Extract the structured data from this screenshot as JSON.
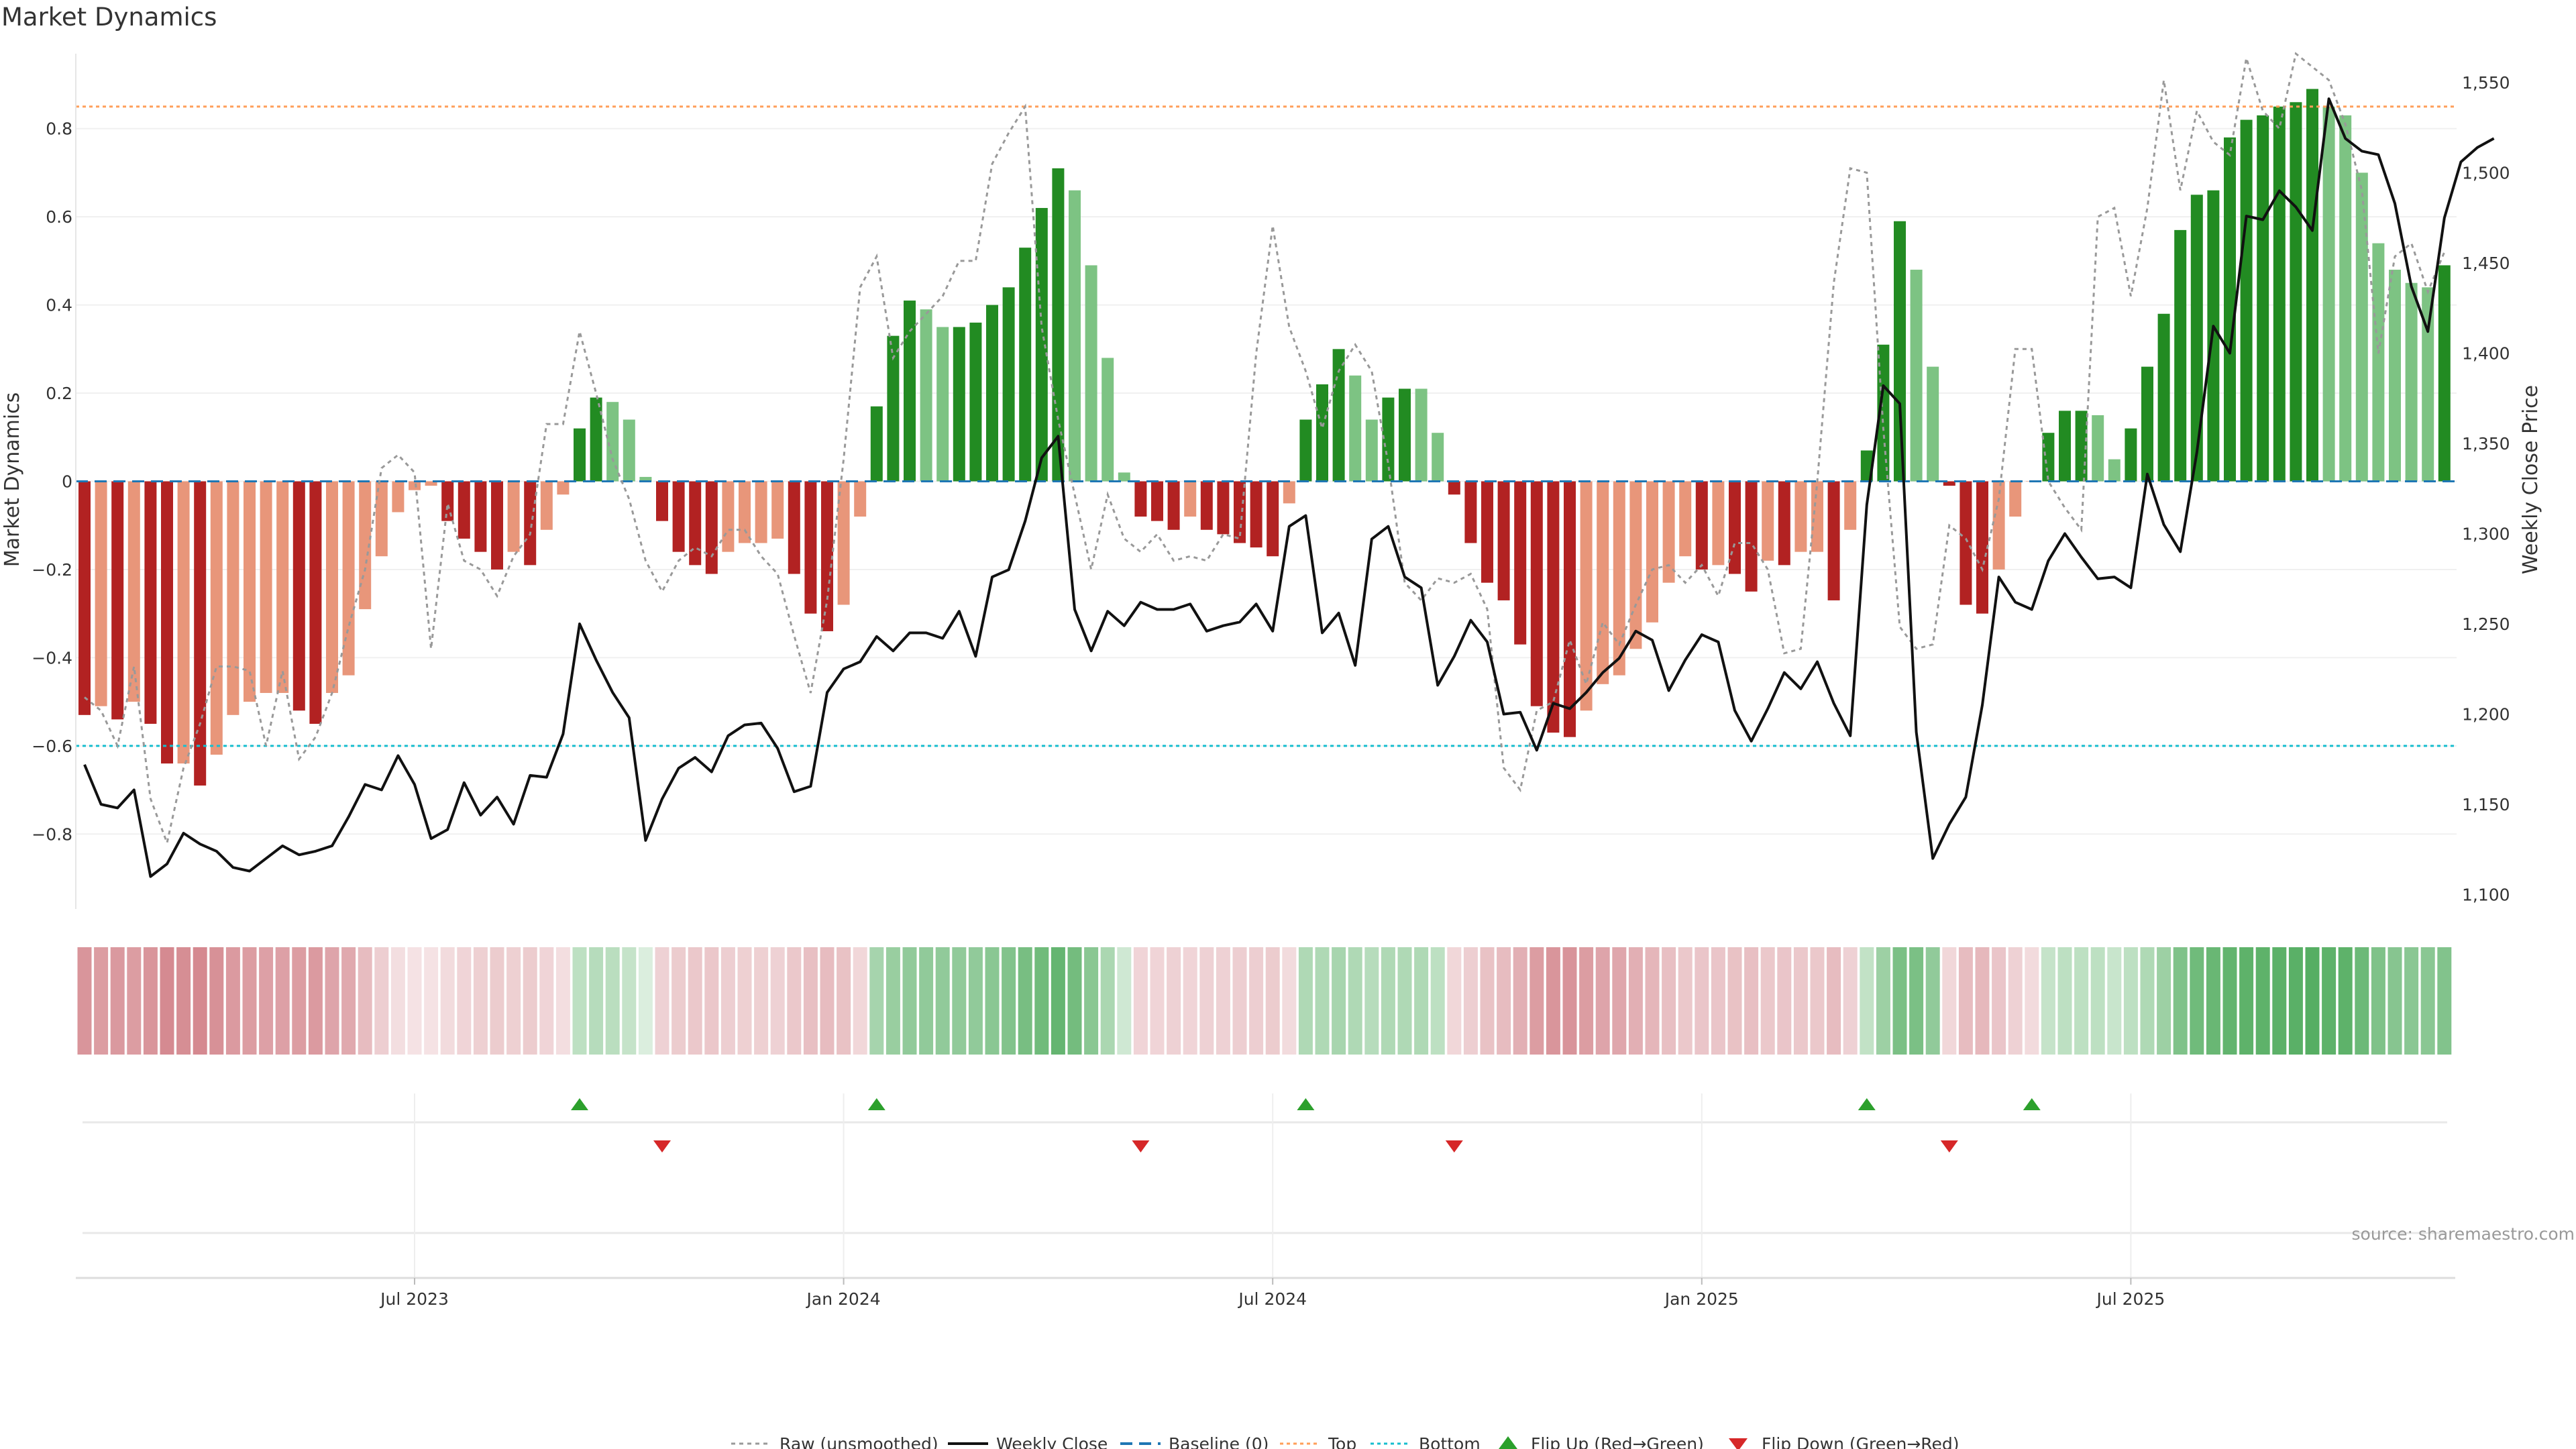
{
  "chart_data": {
    "type": "bar",
    "title": "Market Dynamics",
    "ylabel": "Market Dynamics",
    "ylabel_right": "Weekly Close Price",
    "ylim": [
      -0.97,
      0.97
    ],
    "ylim_right": [
      1092,
      1566
    ],
    "yticks_left": [
      -0.8,
      -0.6,
      -0.4,
      -0.2,
      0,
      0.2,
      0.4,
      0.6,
      0.8
    ],
    "yticks_left_labels": [
      "−0.8",
      "−0.6",
      "−0.4",
      "−0.2",
      "0",
      "0.2",
      "0.4",
      "0.6",
      "0.8"
    ],
    "yticks_right": [
      1100,
      1150,
      1200,
      1250,
      1300,
      1350,
      1400,
      1450,
      1500,
      1550
    ],
    "yticks_right_labels": [
      "1,100",
      "1,150",
      "1,200",
      "1,250",
      "1,300",
      "1,350",
      "1,400",
      "1,450",
      "1,500",
      "1,550"
    ],
    "x_tick_indices": [
      20,
      46,
      72,
      98,
      124
    ],
    "x_tick_labels": [
      "Jul 2023",
      "Jan 2024",
      "Jul 2024",
      "Jan 2025",
      "Jul 2025"
    ],
    "top_threshold": 0.85,
    "bottom_threshold": -0.6,
    "colors": {
      "strong_green": "#228b22",
      "weak_green": "#7dc383",
      "strong_red": "#b22222",
      "weak_red": "#e8967a",
      "raw_line": "#999999",
      "close_line": "#111111",
      "baseline": "#1f77b4",
      "top": "#ff9f5a",
      "bottom": "#17becf",
      "flip_up": "#2ca02c",
      "flip_down": "#d62728",
      "heat_green": "#2e9b3e",
      "heat_red": "#c0505a"
    },
    "series": [
      {
        "name": "Market Dynamics (smoothed)",
        "values": [
          -0.53,
          -0.51,
          -0.54,
          -0.5,
          -0.55,
          -0.64,
          -0.64,
          -0.69,
          -0.62,
          -0.53,
          -0.5,
          -0.48,
          -0.48,
          -0.52,
          -0.55,
          -0.48,
          -0.44,
          -0.29,
          -0.17,
          -0.07,
          -0.02,
          -0.01,
          -0.09,
          -0.13,
          -0.16,
          -0.2,
          -0.16,
          -0.19,
          -0.11,
          -0.03,
          0.12,
          0.19,
          0.18,
          0.14,
          0.01,
          -0.09,
          -0.16,
          -0.19,
          -0.21,
          -0.16,
          -0.14,
          -0.14,
          -0.13,
          -0.21,
          -0.3,
          -0.34,
          -0.28,
          -0.08,
          0.17,
          0.33,
          0.41,
          0.39,
          0.35,
          0.35,
          0.36,
          0.4,
          0.44,
          0.53,
          0.62,
          0.71,
          0.66,
          0.49,
          0.28,
          0.02,
          -0.08,
          -0.09,
          -0.11,
          -0.08,
          -0.11,
          -0.12,
          -0.14,
          -0.15,
          -0.17,
          -0.05,
          0.14,
          0.22,
          0.3,
          0.24,
          0.14,
          0.19,
          0.21,
          0.21,
          0.11,
          -0.03,
          -0.14,
          -0.23,
          -0.27,
          -0.37,
          -0.51,
          -0.57,
          -0.58,
          -0.52,
          -0.46,
          -0.44,
          -0.38,
          -0.32,
          -0.23,
          -0.17,
          -0.2,
          -0.19,
          -0.21,
          -0.25,
          -0.18,
          -0.19,
          -0.16,
          -0.16,
          -0.27,
          -0.11,
          0.07,
          0.31,
          0.59,
          0.48,
          0.26,
          -0.01,
          -0.28,
          -0.3,
          -0.2,
          -0.08,
          0.0,
          0.11,
          0.16,
          0.16,
          0.15,
          0.05,
          0.12,
          0.26,
          0.38,
          0.57,
          0.65,
          0.66,
          0.78,
          0.82,
          0.83,
          0.85,
          0.86,
          0.89,
          0.85,
          0.83,
          0.7,
          0.54,
          0.48,
          0.45,
          0.44,
          0.49
        ],
        "colors": [
          "sr",
          "wr",
          "sr",
          "wr",
          "sr",
          "sr",
          "wr",
          "sr",
          "wr",
          "wr",
          "wr",
          "wr",
          "wr",
          "sr",
          "sr",
          "wr",
          "wr",
          "wr",
          "wr",
          "wr",
          "wr",
          "wr",
          "sr",
          "sr",
          "sr",
          "sr",
          "wr",
          "sr",
          "wr",
          "wr",
          "sg",
          "sg",
          "wg",
          "wg",
          "wg",
          "sr",
          "sr",
          "sr",
          "sr",
          "wr",
          "wr",
          "wr",
          "wr",
          "sr",
          "sr",
          "sr",
          "wr",
          "wr",
          "sg",
          "sg",
          "sg",
          "wg",
          "wg",
          "sg",
          "sg",
          "sg",
          "sg",
          "sg",
          "sg",
          "sg",
          "wg",
          "wg",
          "wg",
          "wg",
          "sr",
          "sr",
          "sr",
          "wr",
          "sr",
          "sr",
          "sr",
          "sr",
          "sr",
          "wr",
          "sg",
          "sg",
          "sg",
          "wg",
          "wg",
          "sg",
          "sg",
          "wg",
          "wg",
          "sr",
          "sr",
          "sr",
          "sr",
          "sr",
          "sr",
          "sr",
          "sr",
          "wr",
          "wr",
          "wr",
          "wr",
          "wr",
          "wr",
          "wr",
          "sr",
          "wr",
          "sr",
          "sr",
          "wr",
          "sr",
          "wr",
          "wr",
          "sr",
          "wr",
          "sg",
          "sg",
          "sg",
          "wg",
          "wg",
          "sr",
          "sr",
          "sr",
          "wr",
          "wr",
          "wr",
          "sg",
          "sg",
          "sg",
          "wg",
          "wg",
          "sg",
          "sg",
          "sg",
          "sg",
          "sg",
          "sg",
          "sg",
          "sg",
          "sg",
          "sg",
          "sg",
          "sg",
          "wg",
          "wg",
          "wg",
          "wg",
          "wg",
          "wg",
          "wg",
          "sg"
        ]
      },
      {
        "name": "Raw (unsmoothed)",
        "values": [
          -0.49,
          -0.52,
          -0.6,
          -0.42,
          -0.72,
          -0.82,
          -0.65,
          -0.55,
          -0.42,
          -0.42,
          -0.43,
          -0.6,
          -0.43,
          -0.63,
          -0.58,
          -0.48,
          -0.33,
          -0.2,
          0.03,
          0.06,
          0.02,
          -0.38,
          -0.05,
          -0.18,
          -0.2,
          -0.26,
          -0.17,
          -0.12,
          0.13,
          0.13,
          0.34,
          0.2,
          0.05,
          -0.04,
          -0.18,
          -0.25,
          -0.18,
          -0.15,
          -0.17,
          -0.11,
          -0.11,
          -0.17,
          -0.21,
          -0.35,
          -0.48,
          -0.27,
          0.05,
          0.44,
          0.51,
          0.28,
          0.34,
          0.38,
          0.42,
          0.5,
          0.5,
          0.72,
          0.79,
          0.85,
          0.35,
          0.14,
          -0.03,
          -0.2,
          -0.03,
          -0.13,
          -0.16,
          -0.12,
          -0.18,
          -0.17,
          -0.18,
          -0.12,
          -0.13,
          0.29,
          0.58,
          0.35,
          0.25,
          0.12,
          0.25,
          0.31,
          0.25,
          0.04,
          -0.23,
          -0.27,
          -0.22,
          -0.23,
          -0.21,
          -0.29,
          -0.65,
          -0.7,
          -0.52,
          -0.5,
          -0.36,
          -0.46,
          -0.32,
          -0.37,
          -0.28,
          -0.2,
          -0.19,
          -0.23,
          -0.19,
          -0.26,
          -0.14,
          -0.14,
          -0.2,
          -0.39,
          -0.38,
          0.0,
          0.45,
          0.71,
          0.7,
          0.12,
          -0.33,
          -0.38,
          -0.37,
          -0.1,
          -0.13,
          -0.2,
          -0.04,
          0.3,
          0.3,
          0.0,
          -0.06,
          -0.11,
          0.6,
          0.62,
          0.42,
          0.62,
          0.91,
          0.66,
          0.84,
          0.77,
          0.74,
          0.96,
          0.84,
          0.8,
          0.97,
          0.94,
          0.91,
          0.81,
          0.66,
          0.29,
          0.51,
          0.54,
          0.43,
          0.52
        ]
      },
      {
        "name": "Weekly Close",
        "axis": "right",
        "values": [
          1172,
          1150,
          1148,
          1158,
          1110,
          1117,
          1134,
          1128,
          1124,
          1115,
          1113,
          1120,
          1127,
          1122,
          1124,
          1127,
          1143,
          1161,
          1158,
          1177,
          1161,
          1131,
          1136,
          1162,
          1144,
          1154,
          1139,
          1166,
          1165,
          1189,
          1250,
          1230,
          1212,
          1198,
          1130,
          1153,
          1170,
          1176,
          1168,
          1188,
          1194,
          1195,
          1181,
          1157,
          1160,
          1212,
          1225,
          1229,
          1243,
          1235,
          1245,
          1245,
          1242,
          1257,
          1232,
          1276,
          1280,
          1307,
          1342,
          1354,
          1258,
          1235,
          1257,
          1249,
          1262,
          1258,
          1258,
          1261,
          1246,
          1249,
          1251,
          1261,
          1246,
          1304,
          1310,
          1245,
          1256,
          1227,
          1297,
          1304,
          1276,
          1270,
          1216,
          1232,
          1252,
          1240,
          1200,
          1201,
          1180,
          1206,
          1203,
          1212,
          1223,
          1231,
          1246,
          1241,
          1213,
          1230,
          1244,
          1240,
          1202,
          1185,
          1203,
          1223,
          1214,
          1229,
          1206,
          1188,
          1316,
          1382,
          1372,
          1190,
          1120,
          1139,
          1154,
          1205,
          1276,
          1262,
          1258,
          1285,
          1300,
          1287,
          1275,
          1276,
          1270,
          1333,
          1305,
          1290,
          1345,
          1415,
          1400,
          1476,
          1474,
          1490,
          1481,
          1468,
          1541,
          1519,
          1512,
          1510,
          1483,
          1437,
          1412,
          1475,
          1506,
          1514,
          1519
        ]
      }
    ],
    "heat_levels": [
      0.55,
      0.5,
      0.53,
      0.5,
      0.55,
      0.62,
      0.6,
      0.63,
      0.58,
      0.52,
      0.5,
      0.48,
      0.48,
      0.5,
      0.52,
      0.45,
      0.42,
      0.3,
      0.18,
      0.08,
      0.05,
      0.05,
      0.1,
      0.14,
      0.17,
      0.2,
      0.17,
      0.2,
      0.14,
      0.08,
      0.22,
      0.26,
      0.24,
      0.18,
      0.06,
      0.16,
      0.2,
      0.22,
      0.23,
      0.18,
      0.17,
      0.17,
      0.16,
      0.22,
      0.28,
      0.3,
      0.26,
      0.12,
      0.35,
      0.42,
      0.46,
      0.46,
      0.46,
      0.46,
      0.46,
      0.5,
      0.54,
      0.6,
      0.64,
      0.7,
      0.62,
      0.5,
      0.32,
      0.12,
      0.14,
      0.14,
      0.16,
      0.14,
      0.16,
      0.16,
      0.18,
      0.18,
      0.2,
      0.1,
      0.3,
      0.3,
      0.34,
      0.3,
      0.26,
      0.3,
      0.3,
      0.3,
      0.22,
      0.12,
      0.18,
      0.26,
      0.3,
      0.38,
      0.5,
      0.55,
      0.56,
      0.5,
      0.45,
      0.44,
      0.38,
      0.34,
      0.28,
      0.22,
      0.24,
      0.24,
      0.26,
      0.28,
      0.22,
      0.24,
      0.22,
      0.22,
      0.3,
      0.16,
      0.2,
      0.4,
      0.58,
      0.58,
      0.46,
      0.12,
      0.3,
      0.32,
      0.24,
      0.16,
      0.1,
      0.18,
      0.22,
      0.22,
      0.22,
      0.16,
      0.22,
      0.3,
      0.4,
      0.56,
      0.64,
      0.68,
      0.72,
      0.74,
      0.74,
      0.75,
      0.76,
      0.78,
      0.74,
      0.74,
      0.66,
      0.56,
      0.52,
      0.5,
      0.5,
      0.54
    ],
    "flips_up": [
      30,
      48,
      74,
      108,
      118
    ],
    "flips_down": [
      35,
      64,
      83,
      113
    ],
    "legend": [
      "Raw (unsmoothed)",
      "Weekly Close",
      "Baseline (0)",
      "Top",
      "Bottom",
      "Flip Up (Red→Green)",
      "Flip Down (Green→Red)"
    ],
    "source": "source: sharemaestro.com"
  }
}
